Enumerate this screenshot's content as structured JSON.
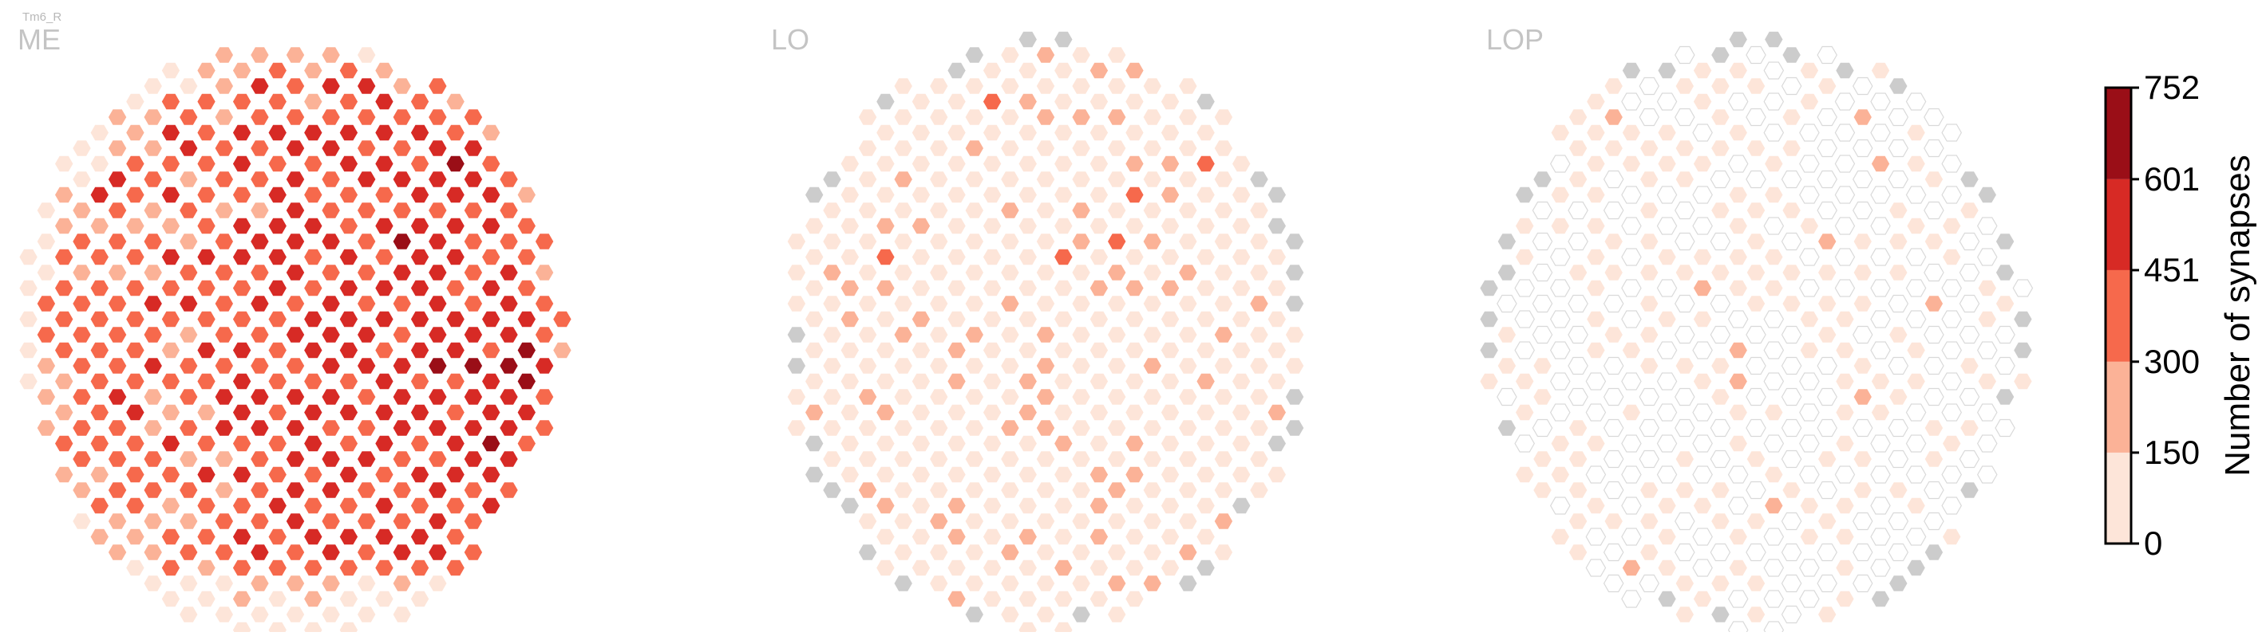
{
  "chart_data": {
    "type": "heatmap",
    "title": "Tm6_R",
    "panels": [
      {
        "name": "ME"
      },
      {
        "name": "LO"
      },
      {
        "name": "LOP"
      }
    ],
    "colorbar": {
      "label": "Number of synapses",
      "ticks": [
        0,
        150,
        300,
        451,
        601,
        752
      ],
      "tick_labels": [
        "0",
        "150",
        "300",
        "451",
        "601",
        "752"
      ],
      "bins": [
        {
          "min": 0,
          "max": 150,
          "color": "#fde5d9"
        },
        {
          "min": 150,
          "max": 300,
          "color": "#fbb297"
        },
        {
          "min": 300,
          "max": 451,
          "color": "#f6694c"
        },
        {
          "min": 451,
          "max": 601,
          "color": "#d72a25"
        },
        {
          "min": 601,
          "max": 752,
          "color": "#9a0e17"
        }
      ],
      "no_data_color": "#cccccc",
      "empty_edge_color": "#d9d9d9"
    }
  }
}
